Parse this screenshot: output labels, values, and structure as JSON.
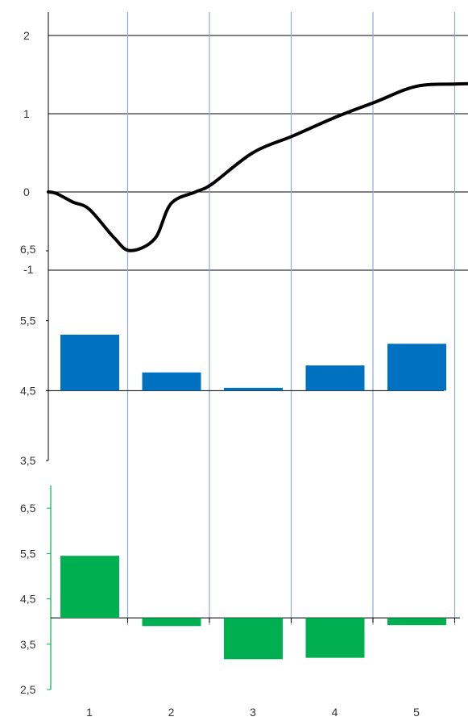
{
  "chart_data": [
    {
      "type": "line",
      "name": "top-panel",
      "x": [
        0,
        0.1,
        0.3,
        0.5,
        0.8,
        1.0,
        1.3,
        1.5,
        1.8,
        2.0,
        2.5,
        3.0,
        3.5,
        4.0,
        4.5,
        5.0,
        5.5
      ],
      "y": [
        0,
        -0.02,
        -0.13,
        -0.22,
        -0.58,
        -0.75,
        -0.6,
        -0.15,
        0.0,
        0.1,
        0.5,
        0.72,
        0.95,
        1.15,
        1.35,
        1.38,
        1.39
      ],
      "ylim": [
        -1,
        2
      ],
      "y_ticks": [
        "2",
        "1",
        "0",
        "-1"
      ],
      "color": "#000000",
      "grid": true
    },
    {
      "type": "bar",
      "name": "middle-panel",
      "categories": [
        "1",
        "2",
        "3",
        "4",
        "5"
      ],
      "values": [
        5.3,
        4.76,
        4.54,
        4.86,
        5.17
      ],
      "baseline": 4.5,
      "ylim": [
        3.5,
        6.5
      ],
      "y_ticks": [
        "6,5",
        "5,5",
        "4,5",
        "3,5"
      ],
      "color": "#0070c0"
    },
    {
      "type": "bar",
      "name": "bottom-panel",
      "categories": [
        "1",
        "2",
        "3",
        "4",
        "5"
      ],
      "values": [
        5.45,
        3.9,
        3.17,
        3.2,
        3.92
      ],
      "baseline": 4.08,
      "ylim": [
        2.5,
        7.0
      ],
      "y_ticks": [
        "6,5",
        "5,5",
        "4,5",
        "3,5",
        "2,5"
      ],
      "color": "#00b050"
    }
  ],
  "x_axis": {
    "tick_labels": [
      "1",
      "2",
      "3",
      "4",
      "5"
    ]
  }
}
